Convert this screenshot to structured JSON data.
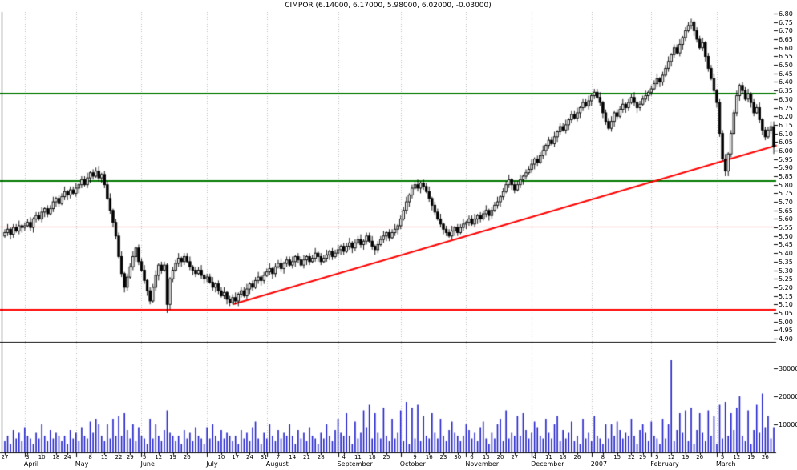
{
  "chart_data": {
    "type": "candlestick",
    "symbol": "CIMPOR",
    "title": "CIMPOR (6.14000, 6.17000, 5.98000, 6.02000, -0.03000)",
    "last_quote": {
      "open": 6.14,
      "high": 6.17,
      "low": 5.98,
      "close": 6.02,
      "change": -0.03
    },
    "price_axis": {
      "min": 4.9,
      "max": 6.8,
      "step": 0.05,
      "labels": [
        "6.80",
        "6.75",
        "6.70",
        "6.65",
        "6.60",
        "6.55",
        "6.50",
        "6.45",
        "6.40",
        "6.35",
        "6.30",
        "6.25",
        "6.20",
        "6.15",
        "6.10",
        "6.05",
        "6.00",
        "5.95",
        "5.90",
        "5.85",
        "5.80",
        "5.75",
        "5.70",
        "5.65",
        "5.60",
        "5.55",
        "5.50",
        "5.45",
        "5.40",
        "5.35",
        "5.30",
        "5.25",
        "5.20",
        "5.15",
        "5.10",
        "5.05",
        "5.00",
        "4.95",
        "4.90"
      ]
    },
    "volume_axis": {
      "labels": [
        "30000",
        "20000",
        "10000"
      ],
      "values": [
        30000,
        20000,
        10000
      ]
    },
    "months": [
      {
        "label": "April",
        "i": 7
      },
      {
        "label": "May",
        "i": 25
      },
      {
        "label": "June",
        "i": 48
      },
      {
        "label": "July",
        "i": 71
      },
      {
        "label": "August",
        "i": 92
      },
      {
        "label": "September",
        "i": 117
      },
      {
        "label": "October",
        "i": 139
      },
      {
        "label": "November",
        "i": 162
      },
      {
        "label": "December",
        "i": 185
      },
      {
        "label": "2007",
        "i": 206
      },
      {
        "label": "February",
        "i": 227
      },
      {
        "label": "March",
        "i": 250
      }
    ],
    "day_ticks": [
      {
        "label": "27",
        "i": 0
      },
      {
        "label": "3",
        "i": 8
      },
      {
        "label": "10",
        "i": 13
      },
      {
        "label": "18",
        "i": 18
      },
      {
        "label": "24",
        "i": 22
      },
      {
        "label": "8",
        "i": 30
      },
      {
        "label": "15",
        "i": 35
      },
      {
        "label": "22",
        "i": 40
      },
      {
        "label": "29",
        "i": 44
      },
      {
        "label": "5",
        "i": 49
      },
      {
        "label": "12",
        "i": 54
      },
      {
        "label": "19",
        "i": 59
      },
      {
        "label": "26",
        "i": 64
      },
      {
        "label": "10",
        "i": 76
      },
      {
        "label": "17",
        "i": 81
      },
      {
        "label": "24",
        "i": 86
      },
      {
        "label": "31",
        "i": 91
      },
      {
        "label": "7",
        "i": 96
      },
      {
        "label": "14",
        "i": 101
      },
      {
        "label": "21",
        "i": 106
      },
      {
        "label": "28",
        "i": 111
      },
      {
        "label": "4",
        "i": 119
      },
      {
        "label": "11",
        "i": 124
      },
      {
        "label": "18",
        "i": 129
      },
      {
        "label": "25",
        "i": 134
      },
      {
        "label": "9",
        "i": 144
      },
      {
        "label": "16",
        "i": 149
      },
      {
        "label": "23",
        "i": 154
      },
      {
        "label": "30",
        "i": 159
      },
      {
        "label": "6",
        "i": 164
      },
      {
        "label": "13",
        "i": 169
      },
      {
        "label": "20",
        "i": 174
      },
      {
        "label": "27",
        "i": 179
      },
      {
        "label": "4",
        "i": 186
      },
      {
        "label": "11",
        "i": 191
      },
      {
        "label": "18",
        "i": 196
      },
      {
        "label": "26",
        "i": 201
      },
      {
        "label": "8",
        "i": 210
      },
      {
        "label": "15",
        "i": 215
      },
      {
        "label": "22",
        "i": 220
      },
      {
        "label": "29",
        "i": 224
      },
      {
        "label": "5",
        "i": 229
      },
      {
        "label": "12",
        "i": 234
      },
      {
        "label": "19",
        "i": 239
      },
      {
        "label": "26",
        "i": 244
      },
      {
        "label": "5",
        "i": 252
      },
      {
        "label": "12",
        "i": 257
      },
      {
        "label": "19",
        "i": 262
      },
      {
        "label": "26",
        "i": 267
      }
    ],
    "levels": [
      {
        "price": 6.33,
        "color": "#007a00",
        "width": 2
      },
      {
        "price": 5.82,
        "color": "#007a00",
        "width": 2
      },
      {
        "price": 5.555,
        "color": "#ff9090",
        "width": 1
      },
      {
        "price": 5.07,
        "color": "#ff0000",
        "width": 2
      }
    ],
    "divider_price": 4.88,
    "trendline": {
      "i1": 80,
      "p1": 5.1,
      "i2": 271,
      "p2": 6.03,
      "color": "#ff0000",
      "width": 2
    },
    "first_open": 5.5,
    "wick_high": [
      0.02,
      0.03,
      0.01,
      0.02
    ],
    "wick_low": [
      0.01,
      0.02,
      0.03,
      0.02
    ],
    "special_bars": {
      "57": {
        "h": 5.34,
        "l": 5.05
      },
      "241": {
        "h": 6.77
      },
      "253": {
        "l": 5.85
      },
      "270": {
        "o": 6.14,
        "h": 6.17,
        "l": 5.98,
        "c": 6.02
      }
    },
    "closes": [
      5.52,
      5.54,
      5.51,
      5.55,
      5.53,
      5.56,
      5.55,
      5.56,
      5.58,
      5.55,
      5.6,
      5.62,
      5.6,
      5.64,
      5.66,
      5.63,
      5.66,
      5.7,
      5.72,
      5.69,
      5.73,
      5.76,
      5.74,
      5.77,
      5.75,
      5.78,
      5.8,
      5.83,
      5.8,
      5.84,
      5.87,
      5.85,
      5.88,
      5.84,
      5.86,
      5.8,
      5.72,
      5.65,
      5.58,
      5.5,
      5.38,
      5.28,
      5.2,
      5.26,
      5.32,
      5.38,
      5.43,
      5.35,
      5.3,
      5.24,
      5.18,
      5.12,
      5.2,
      5.27,
      5.33,
      5.3,
      5.33,
      5.1,
      5.25,
      5.3,
      5.34,
      5.37,
      5.35,
      5.38,
      5.35,
      5.32,
      5.3,
      5.28,
      5.3,
      5.27,
      5.25,
      5.26,
      5.23,
      5.2,
      5.22,
      5.18,
      5.15,
      5.17,
      5.13,
      5.11,
      5.14,
      5.12,
      5.16,
      5.18,
      5.15,
      5.19,
      5.22,
      5.2,
      5.24,
      5.26,
      5.24,
      5.27,
      5.29,
      5.31,
      5.28,
      5.32,
      5.34,
      5.31,
      5.34,
      5.36,
      5.33,
      5.35,
      5.38,
      5.36,
      5.33,
      5.36,
      5.38,
      5.35,
      5.37,
      5.4,
      5.38,
      5.35,
      5.37,
      5.39,
      5.41,
      5.38,
      5.4,
      5.42,
      5.44,
      5.41,
      5.44,
      5.46,
      5.43,
      5.46,
      5.48,
      5.45,
      5.47,
      5.5,
      5.47,
      5.44,
      5.42,
      5.45,
      5.48,
      5.5,
      5.52,
      5.49,
      5.52,
      5.54,
      5.56,
      5.6,
      5.65,
      5.7,
      5.74,
      5.78,
      5.8,
      5.78,
      5.81,
      5.79,
      5.76,
      5.72,
      5.68,
      5.64,
      5.6,
      5.57,
      5.54,
      5.52,
      5.5,
      5.53,
      5.55,
      5.52,
      5.55,
      5.57,
      5.58,
      5.6,
      5.57,
      5.6,
      5.62,
      5.6,
      5.63,
      5.65,
      5.62,
      5.65,
      5.68,
      5.7,
      5.73,
      5.76,
      5.8,
      5.83,
      5.8,
      5.77,
      5.8,
      5.83,
      5.85,
      5.87,
      5.89,
      5.92,
      5.95,
      5.93,
      5.97,
      6.0,
      6.03,
      6.06,
      6.04,
      6.08,
      6.11,
      6.14,
      6.12,
      6.15,
      6.18,
      6.21,
      6.19,
      6.22,
      6.25,
      6.28,
      6.26,
      6.29,
      6.32,
      6.34,
      6.31,
      6.28,
      6.22,
      6.17,
      6.13,
      6.17,
      6.22,
      6.2,
      6.24,
      6.27,
      6.25,
      6.28,
      6.31,
      6.28,
      6.25,
      6.27,
      6.3,
      6.32,
      6.34,
      6.36,
      6.39,
      6.42,
      6.4,
      6.44,
      6.48,
      6.52,
      6.56,
      6.6,
      6.57,
      6.62,
      6.66,
      6.7,
      6.73,
      6.75,
      6.7,
      6.65,
      6.6,
      6.63,
      6.55,
      6.48,
      6.42,
      6.35,
      6.28,
      6.1,
      5.95,
      5.88,
      5.98,
      6.1,
      6.22,
      6.32,
      6.38,
      6.35,
      6.3,
      6.33,
      6.28,
      6.22,
      6.25,
      6.18,
      6.12,
      6.08,
      6.12,
      6.14,
      6.02
    ],
    "volumes": [
      4000,
      6000,
      3000,
      8000,
      5000,
      7000,
      4000,
      9000,
      6000,
      5000,
      3000,
      7000,
      5000,
      10000,
      6000,
      4000,
      8000,
      5000,
      7000,
      6000,
      4000,
      6000,
      3000,
      8000,
      5000,
      7000,
      4000,
      9000,
      6000,
      5000,
      11000,
      7000,
      12000,
      10000,
      6000,
      4000,
      10000,
      5000,
      12000,
      6000,
      13000,
      6000,
      14000,
      8000,
      5000,
      10000,
      4000,
      9000,
      6000,
      5000,
      3000,
      12000,
      5000,
      10000,
      6000,
      4000,
      8000,
      15000,
      7000,
      6000,
      4000,
      6000,
      3000,
      8000,
      5000,
      7000,
      4000,
      9000,
      6000,
      5000,
      3000,
      9000,
      5000,
      10000,
      6000,
      4000,
      8000,
      5000,
      7000,
      6000,
      4000,
      6000,
      3000,
      8000,
      5000,
      7000,
      4000,
      9000,
      11000,
      5000,
      3000,
      7000,
      5000,
      10000,
      6000,
      4000,
      8000,
      5000,
      7000,
      6000,
      10000,
      6000,
      3000,
      8000,
      5000,
      7000,
      4000,
      9000,
      6000,
      5000,
      3000,
      7000,
      5000,
      10000,
      6000,
      4000,
      8000,
      12000,
      7000,
      6000,
      14000,
      6000,
      3000,
      11000,
      5000,
      7000,
      15000,
      9000,
      17000,
      5000,
      14000,
      7000,
      5000,
      16000,
      6000,
      4000,
      12000,
      5000,
      7000,
      15000,
      4000,
      18000,
      3000,
      16000,
      5000,
      17000,
      4000,
      13000,
      6000,
      5000,
      14000,
      7000,
      5000,
      12000,
      6000,
      4000,
      8000,
      11000,
      7000,
      6000,
      4000,
      6000,
      10000,
      8000,
      5000,
      7000,
      4000,
      9000,
      11000,
      5000,
      3000,
      7000,
      5000,
      10000,
      12000,
      4000,
      15000,
      5000,
      7000,
      6000,
      13000,
      6000,
      14000,
      8000,
      5000,
      7000,
      11000,
      9000,
      6000,
      5000,
      12000,
      7000,
      5000,
      10000,
      13000,
      4000,
      8000,
      5000,
      7000,
      11000,
      4000,
      6000,
      3000,
      12000,
      5000,
      7000,
      4000,
      13000,
      6000,
      5000,
      3000,
      10000,
      5000,
      10000,
      6000,
      11000,
      8000,
      5000,
      7000,
      6000,
      12000,
      6000,
      3000,
      8000,
      10000,
      7000,
      4000,
      11000,
      6000,
      5000,
      3000,
      12000,
      5000,
      10000,
      33000,
      4000,
      8000,
      14000,
      7000,
      15000,
      4000,
      16000,
      3000,
      8000,
      14000,
      7000,
      4000,
      15000,
      6000,
      13000,
      3000,
      17000,
      5000,
      18000,
      6000,
      14000,
      8000,
      16000,
      20000,
      6000,
      4000,
      15000,
      3000,
      8000,
      17000,
      7000,
      21000,
      9000,
      13000,
      5000,
      9000
    ],
    "colors": {
      "up": "#ffffff",
      "down": "#000000",
      "outline": "#000000",
      "volume": "#2222cc",
      "grid": "#bbbbbb",
      "axis": "#000000"
    }
  }
}
